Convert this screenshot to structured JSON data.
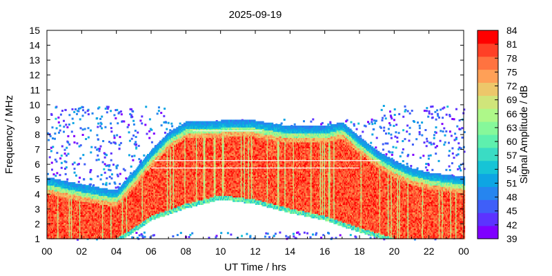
{
  "chart_data": {
    "type": "heatmap",
    "title": "2025-09-19",
    "xlabel": "UT Time / hrs",
    "ylabel": "Frequency / MHz",
    "xlim": [
      0,
      24
    ],
    "ylim": [
      1,
      15
    ],
    "xticks": [
      "00",
      "02",
      "04",
      "06",
      "08",
      "10",
      "12",
      "14",
      "16",
      "18",
      "20",
      "22",
      "00"
    ],
    "yticks": [
      "1",
      "2",
      "3",
      "4",
      "5",
      "6",
      "7",
      "8",
      "9",
      "10",
      "11",
      "12",
      "13",
      "14",
      "15"
    ],
    "colorbar": {
      "label": "Signal Amplitude / dB",
      "range": [
        39,
        84
      ],
      "ticks": [
        "39",
        "42",
        "45",
        "48",
        "51",
        "54",
        "57",
        "60",
        "63",
        "66",
        "69",
        "72",
        "75",
        "78",
        "81",
        "84"
      ],
      "colors": [
        "#7f00ff",
        "#5c33ff",
        "#3f5ff8",
        "#2685ef",
        "#0ea5e3",
        "#16c4d6",
        "#3adcc4",
        "#5ef0ae",
        "#86f89a",
        "#aef889",
        "#d0e57a",
        "#edc76a",
        "#ffa057",
        "#ff7340",
        "#ff4026",
        "#ff0000"
      ]
    },
    "strong_signal_upper_edge_mhz": [
      {
        "time": 0,
        "freq": 4.6
      },
      {
        "time": 2,
        "freq": 4.1
      },
      {
        "time": 4,
        "freq": 3.7
      },
      {
        "time": 5,
        "freq": 5.0
      },
      {
        "time": 6,
        "freq": 6.4
      },
      {
        "time": 7,
        "freq": 7.6
      },
      {
        "time": 8,
        "freq": 8.3
      },
      {
        "time": 10,
        "freq": 8.4
      },
      {
        "time": 12,
        "freq": 8.4
      },
      {
        "time": 14,
        "freq": 8.0
      },
      {
        "time": 16,
        "freq": 8.0
      },
      {
        "time": 17,
        "freq": 8.3
      },
      {
        "time": 18,
        "freq": 7.3
      },
      {
        "time": 19,
        "freq": 6.4
      },
      {
        "time": 20,
        "freq": 5.7
      },
      {
        "time": 21,
        "freq": 5.2
      },
      {
        "time": 22,
        "freq": 4.9
      },
      {
        "time": 24,
        "freq": 4.6
      }
    ],
    "strong_signal_lower_edge_mhz": [
      {
        "time": 0,
        "freq": 1.0
      },
      {
        "time": 4,
        "freq": 1.0
      },
      {
        "time": 5,
        "freq": 1.7
      },
      {
        "time": 6,
        "freq": 2.5
      },
      {
        "time": 8,
        "freq": 3.3
      },
      {
        "time": 10,
        "freq": 3.9
      },
      {
        "time": 12,
        "freq": 3.6
      },
      {
        "time": 14,
        "freq": 3.0
      },
      {
        "time": 16,
        "freq": 2.5
      },
      {
        "time": 18,
        "freq": 1.7
      },
      {
        "time": 20,
        "freq": 1.0
      },
      {
        "time": 24,
        "freq": 1.0
      }
    ],
    "scatter_noise_upper_mhz": 10
  }
}
